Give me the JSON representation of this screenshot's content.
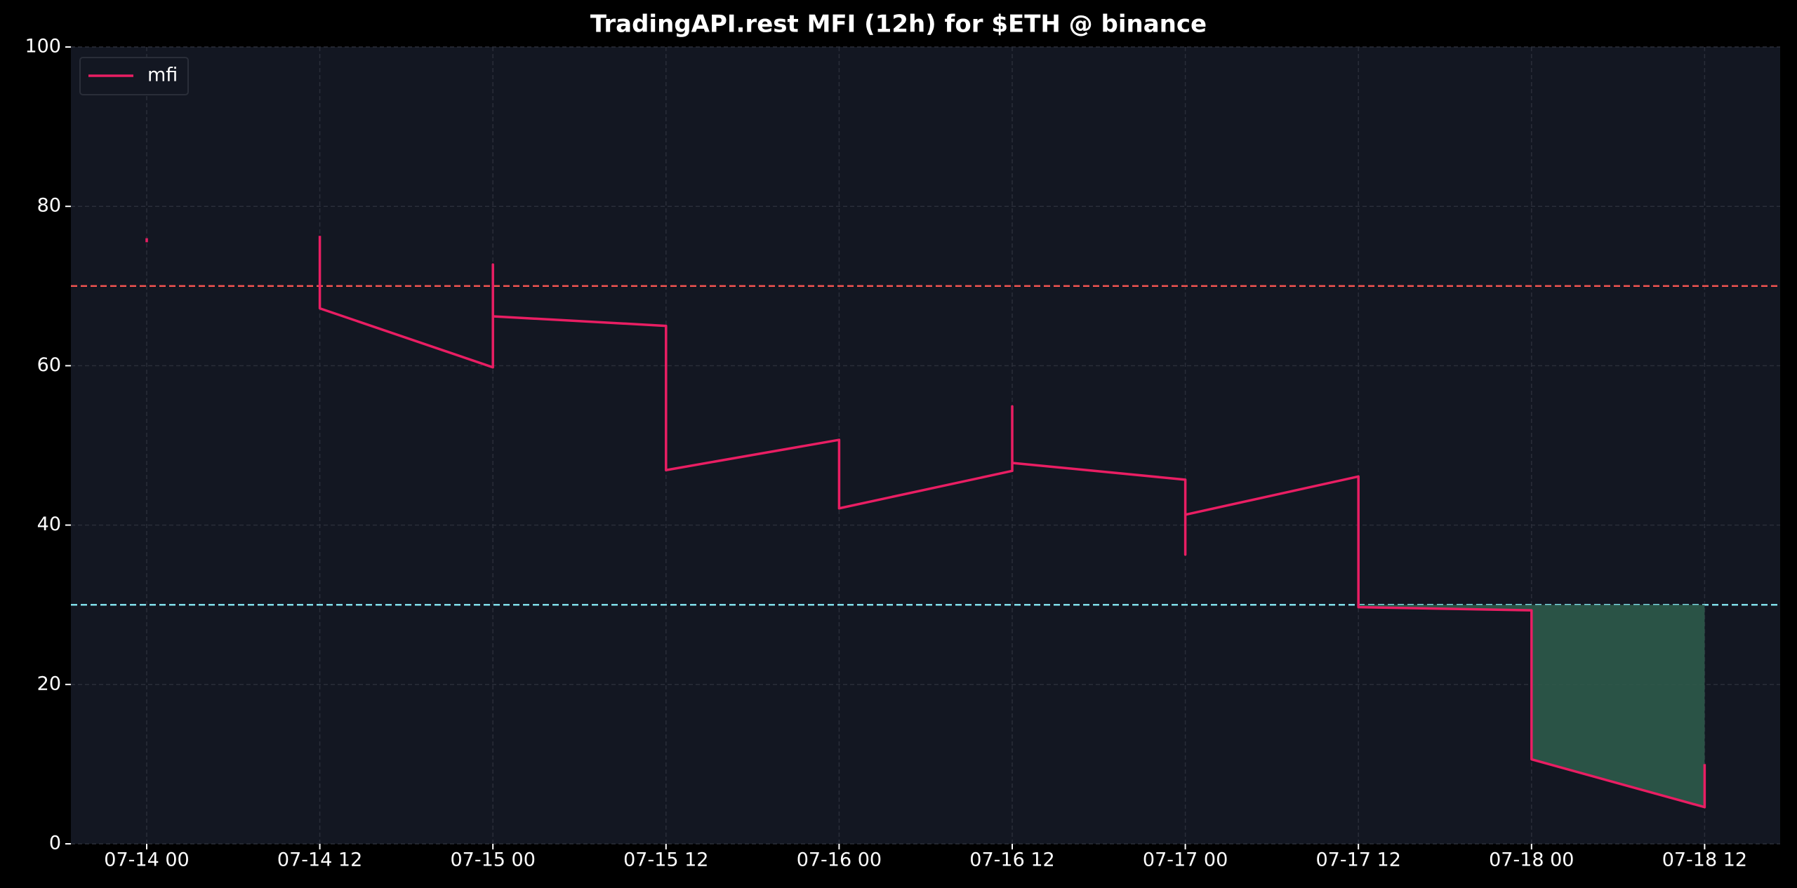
{
  "chart_data": {
    "type": "line",
    "title": "TradingAPI.rest MFI (12h) for $ETH @ binance",
    "x": [
      "07-14 00",
      "07-14 00",
      "07-14 12",
      "07-14 12",
      "07-14 12",
      "07-15 00",
      "07-15 00",
      "07-15 00",
      "07-15 12",
      "07-15 12",
      "07-16 00",
      "07-16 00",
      "07-16 12",
      "07-16 12",
      "07-16 12",
      "07-17 00",
      "07-17 00",
      "07-17 00",
      "07-17 12",
      "07-17 12",
      "07-18 00",
      "07-18 00",
      "07-18 12",
      "07-18 12"
    ],
    "series": [
      {
        "name": "mfi",
        "color": "#e91e63",
        "values": [
          76.0,
          75.5,
          null,
          76.3,
          67.2,
          59.8,
          72.7,
          66.2,
          65.0,
          46.9,
          50.7,
          42.1,
          46.8,
          54.9,
          47.8,
          45.7,
          36.3,
          41.3,
          46.1,
          29.7,
          29.3,
          10.6,
          4.6,
          10.0
        ]
      }
    ],
    "xticks": [
      "07-14 00",
      "07-14 12",
      "07-15 00",
      "07-15 12",
      "07-16 00",
      "07-16 12",
      "07-17 00",
      "07-17 12",
      "07-18 00",
      "07-18 12"
    ],
    "ylim": [
      0,
      100
    ],
    "yticks": [
      0,
      20,
      40,
      60,
      80,
      100
    ],
    "grid": true,
    "legend": "upper left",
    "hlines": [
      {
        "value": 70,
        "color": "#ef5350"
      },
      {
        "value": 30,
        "color": "#80deea"
      }
    ],
    "fill_below": {
      "value": 30,
      "color": "#2d5a4a"
    }
  }
}
